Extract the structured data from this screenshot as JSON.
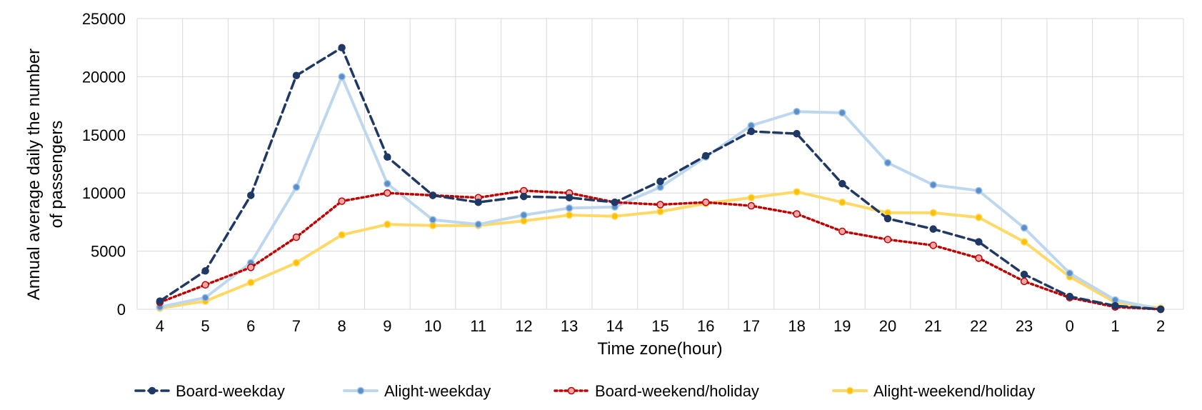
{
  "chart_data": {
    "type": "line",
    "xlabel": "Time zone(hour)",
    "ylabel_line1": "Annual average daily the number",
    "ylabel_line2": "of passengers",
    "categories": [
      "4",
      "5",
      "6",
      "7",
      "8",
      "9",
      "10",
      "11",
      "12",
      "13",
      "14",
      "15",
      "16",
      "17",
      "18",
      "19",
      "20",
      "21",
      "22",
      "23",
      "0",
      "1",
      "2"
    ],
    "ylim": [
      0,
      25000
    ],
    "yticks": [
      0,
      5000,
      10000,
      15000,
      20000,
      25000
    ],
    "grid": true,
    "legend_position": "bottom",
    "series": [
      {
        "name": "Board-weekday",
        "color": "#1f3864",
        "style": "dashed",
        "values": [
          700,
          3300,
          9800,
          20100,
          22500,
          13100,
          9800,
          9200,
          9700,
          9600,
          9200,
          11000,
          13200,
          15300,
          15100,
          10800,
          7800,
          6900,
          5800,
          3000,
          1100,
          300,
          0
        ]
      },
      {
        "name": "Alight-weekday",
        "color": "#bdd7ee",
        "style": "solid",
        "values": [
          200,
          1000,
          4000,
          10500,
          20000,
          10800,
          7700,
          7300,
          8100,
          8700,
          8800,
          10500,
          13100,
          15800,
          17000,
          16900,
          12600,
          10700,
          10200,
          7000,
          3100,
          800,
          0
        ]
      },
      {
        "name": "Board-weekend/holiday",
        "color": "#c00000",
        "style": "dotted",
        "values": [
          600,
          2100,
          3600,
          6200,
          9300,
          10000,
          9800,
          9600,
          10200,
          10000,
          9200,
          9000,
          9200,
          8900,
          8200,
          6700,
          6000,
          5500,
          4400,
          2400,
          1000,
          200,
          0
        ]
      },
      {
        "name": "Alight-weekend/holiday",
        "color": "#ffd966",
        "style": "solid",
        "values": [
          100,
          700,
          2300,
          4000,
          6400,
          7300,
          7200,
          7200,
          7600,
          8100,
          8000,
          8400,
          9100,
          9600,
          10100,
          9200,
          8300,
          8300,
          7900,
          5800,
          2800,
          600,
          100
        ]
      }
    ]
  }
}
